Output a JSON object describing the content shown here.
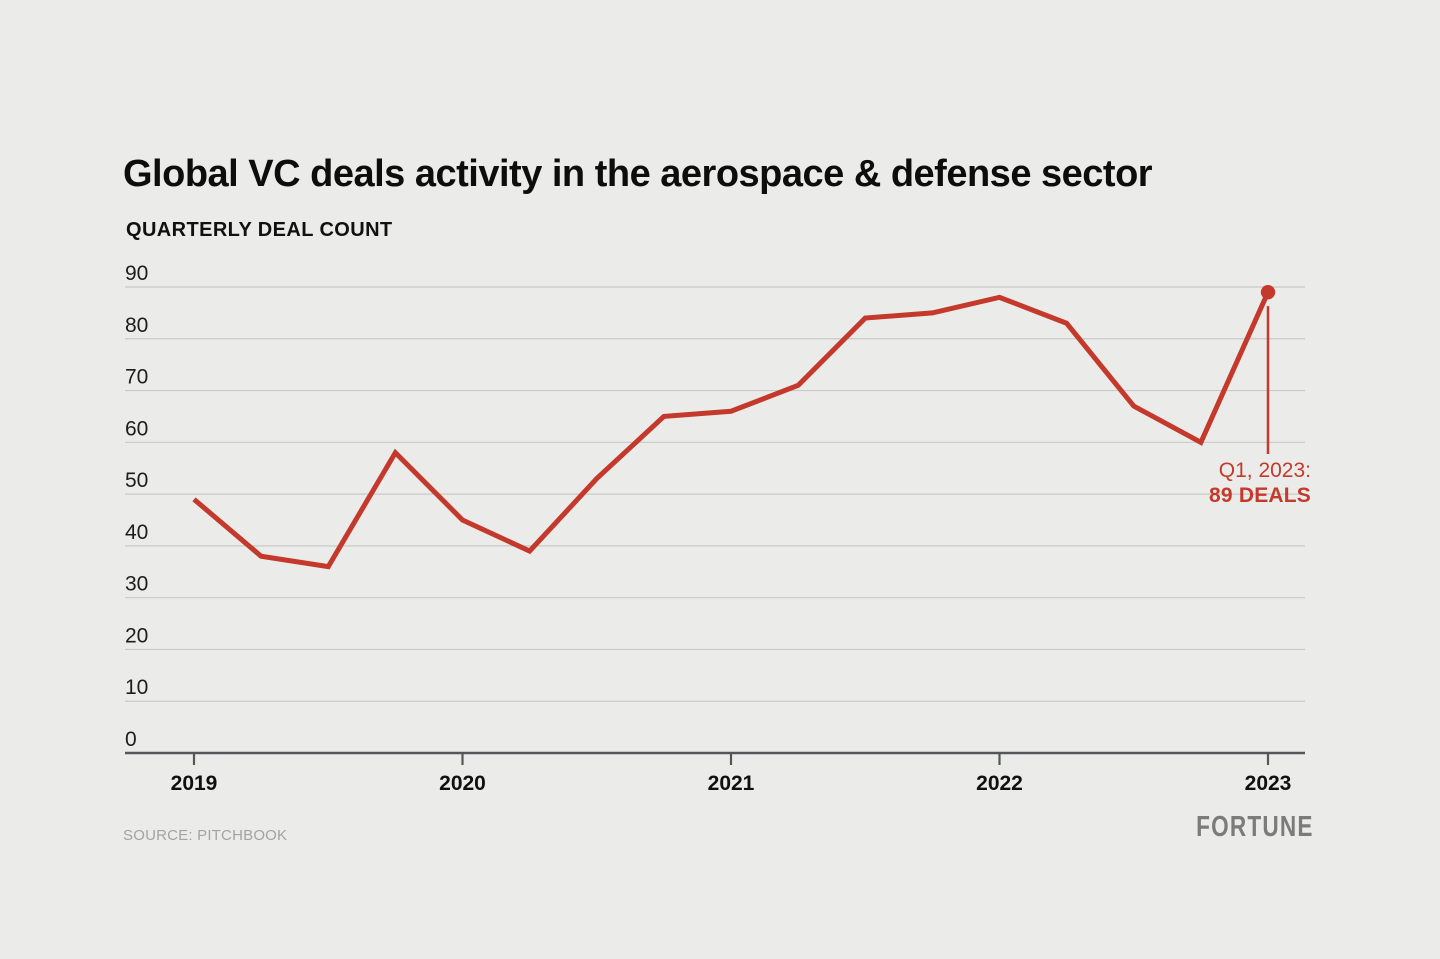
{
  "page": {
    "title": "Global VC deals activity in the aerospace & defense sector",
    "subtitle": "QUARTERLY DEAL COUNT",
    "source": "SOURCE: PITCHBOOK",
    "logo": "FORTUNE"
  },
  "colors": {
    "background": "#ebece9",
    "accent_red": "#c4392b",
    "gridline": "#c9cac7",
    "axis": "#55565a",
    "title_text": "#0d0d0d",
    "muted_text": "#a3a3a3",
    "logo_gray": "#7b7b7b"
  },
  "annotation": {
    "line1": "Q1, 2023:",
    "line2": "89 DEALS"
  },
  "chart_data": {
    "type": "line",
    "title": "Global VC deals activity in the aerospace & defense sector",
    "ylabel": "QUARTERLY DEAL COUNT",
    "x": [
      "Q1 2019",
      "Q2 2019",
      "Q3 2019",
      "Q4 2019",
      "Q1 2020",
      "Q2 2020",
      "Q3 2020",
      "Q4 2020",
      "Q1 2021",
      "Q2 2021",
      "Q3 2021",
      "Q4 2021",
      "Q1 2022",
      "Q2 2022",
      "Q3 2022",
      "Q4 2022",
      "Q1 2023"
    ],
    "values": [
      49,
      38,
      36,
      58,
      45,
      39,
      53,
      65,
      66,
      71,
      84,
      85,
      88,
      83,
      67,
      60,
      89
    ],
    "x_tick_labels": [
      "2019",
      "2020",
      "2021",
      "2022",
      "2023"
    ],
    "y_ticks": [
      0,
      10,
      20,
      30,
      40,
      50,
      60,
      70,
      80,
      90
    ],
    "ylim": [
      0,
      90
    ],
    "grid": "horizontal",
    "legend": "none",
    "series_color": "#c4392b",
    "annotation": {
      "x": "Q1 2023",
      "value": 89,
      "text": "Q1, 2023: 89 DEALS"
    }
  }
}
